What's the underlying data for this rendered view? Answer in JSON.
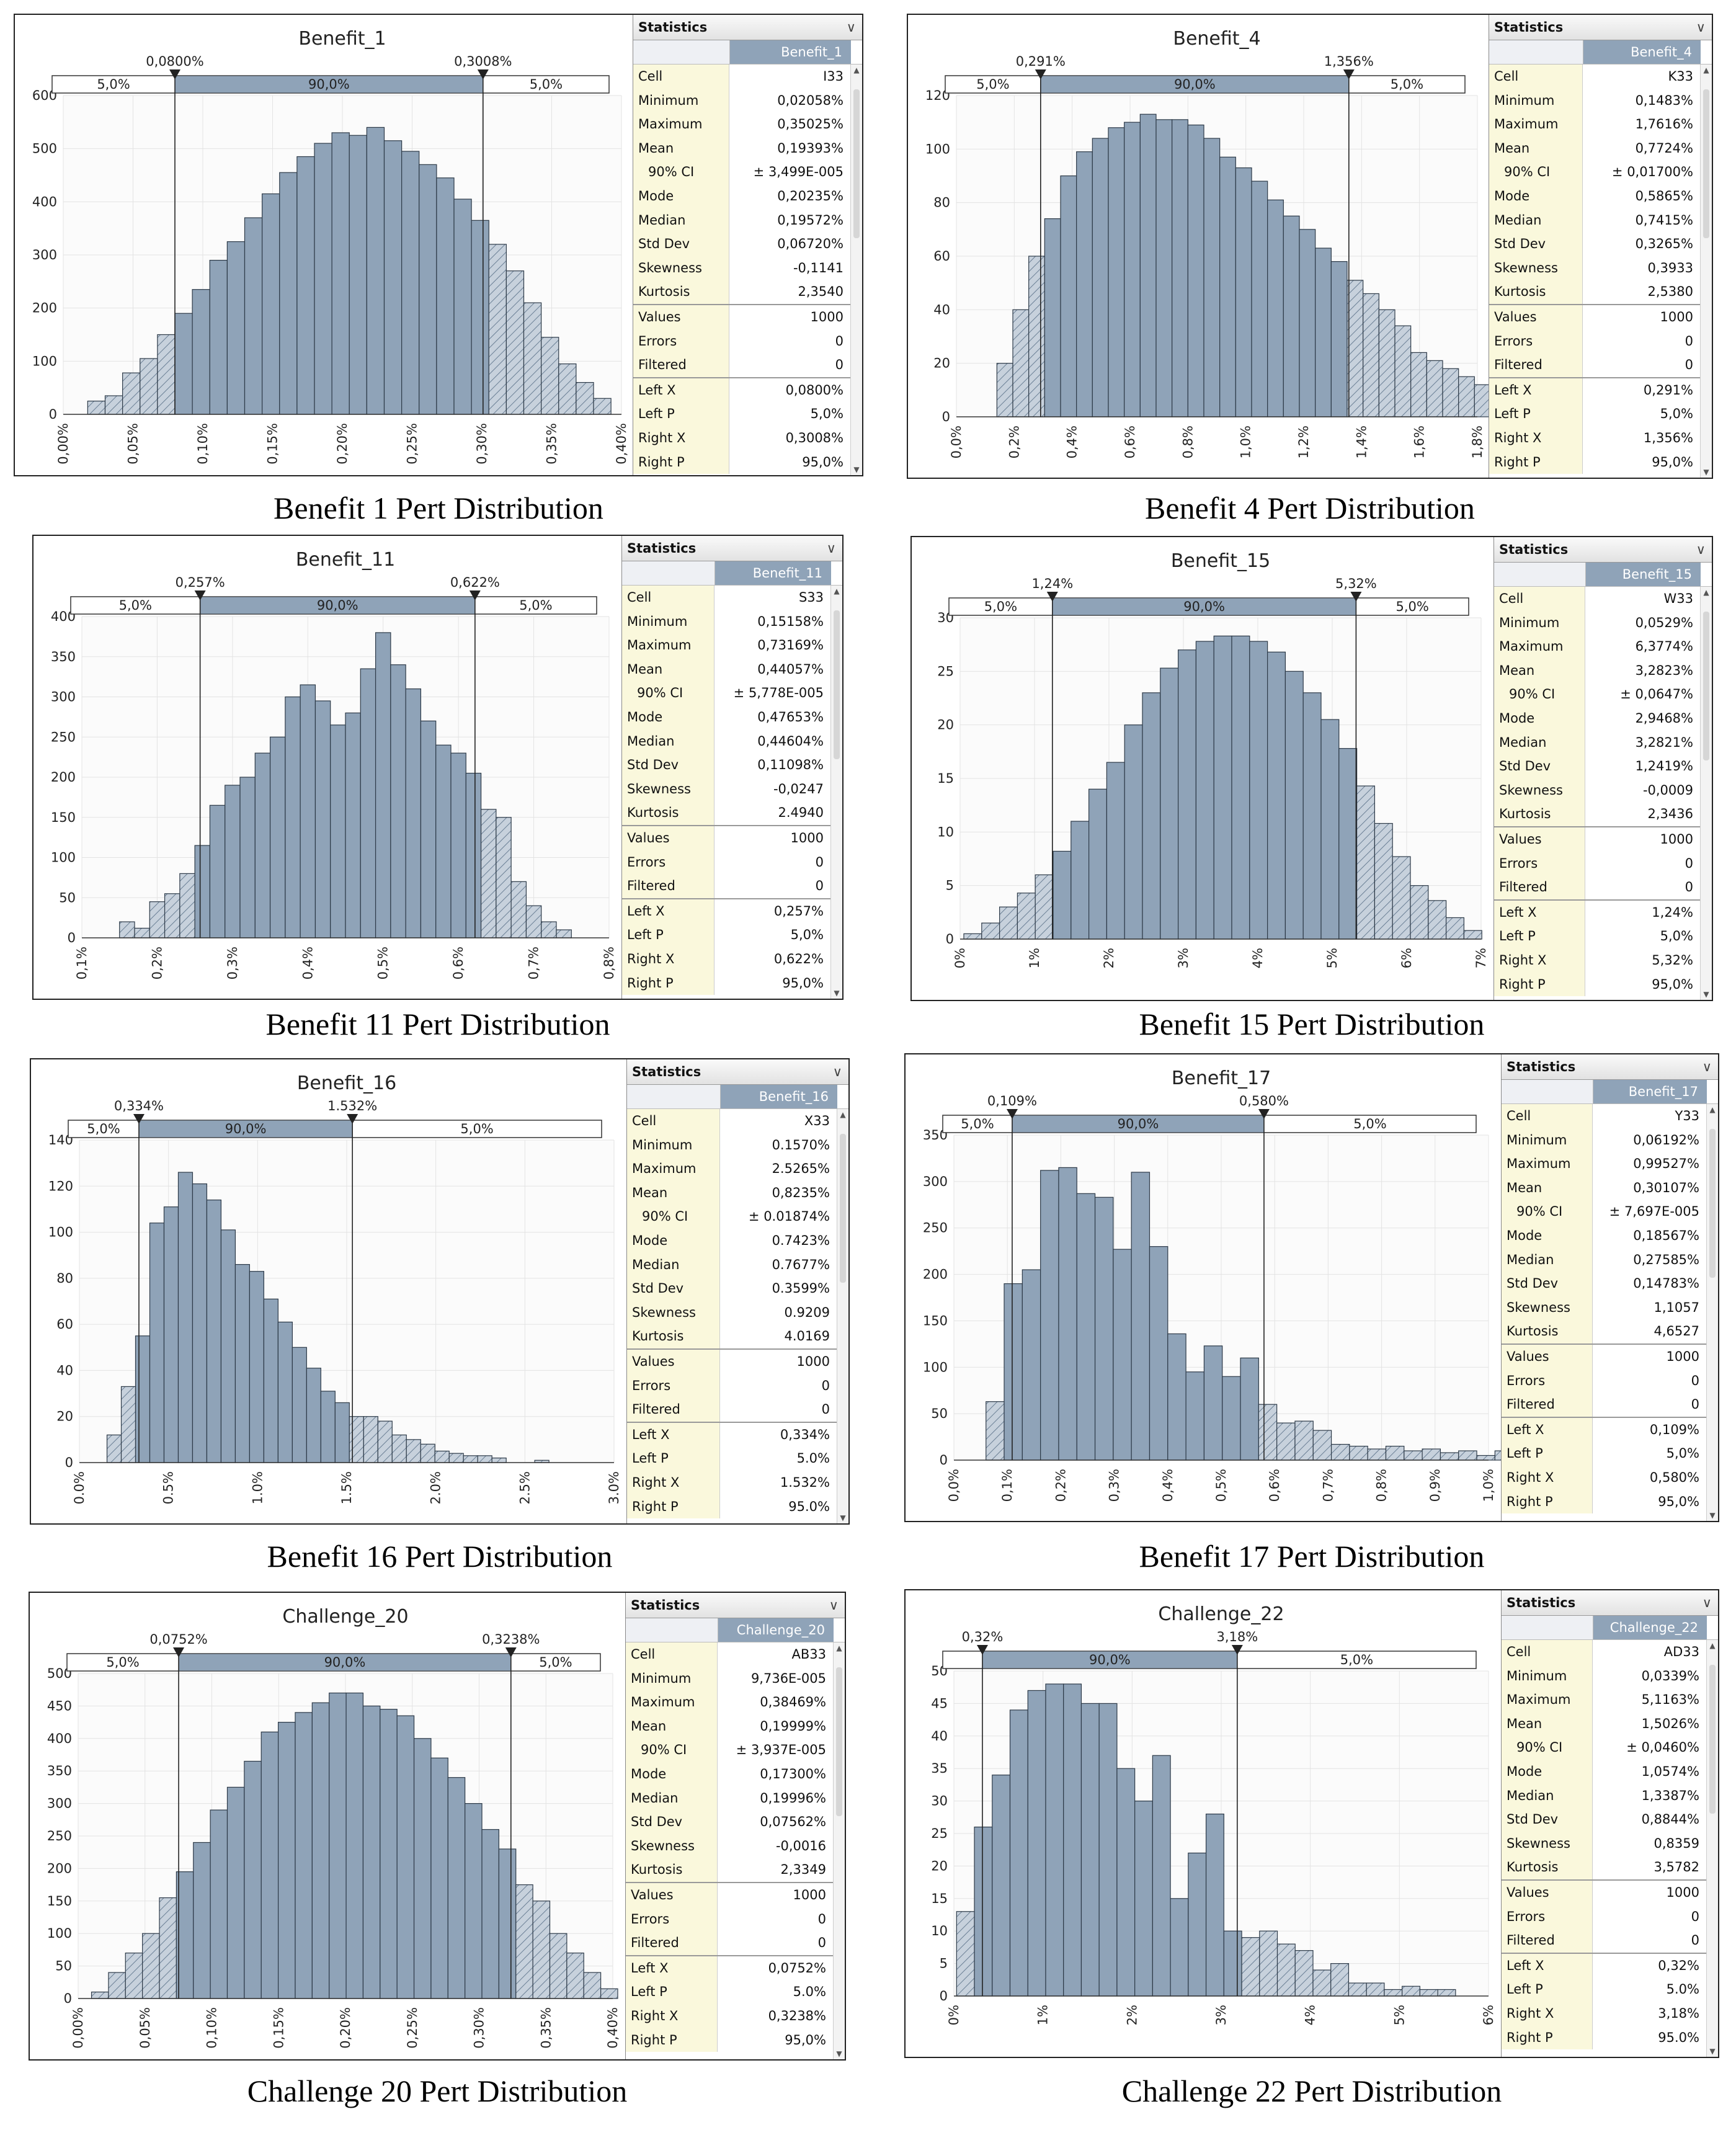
{
  "stat_header": "Statistics",
  "stat_keys": [
    "Cell",
    "Minimum",
    "Maximum",
    "Mean",
    "90% CI",
    "Mode",
    "Median",
    "Std Dev",
    "Skewness",
    "Kurtosis",
    "Values",
    "Errors",
    "Filtered",
    "Left X",
    "Left P",
    "Right X",
    "Right P"
  ],
  "panels": [
    {
      "caption": "Benefit 1 Pert Distribution",
      "title": "Benefit_1",
      "column_label": "Benefit_1",
      "stats": [
        "I33",
        "0,02058%",
        "0,35025%",
        "0,19393%",
        "± 3,499E-005",
        "0,20235%",
        "0,19572%",
        "0,06720%",
        "-0,1141",
        "2,3540",
        "1000",
        "0",
        "0",
        "0,0800%",
        "5,0%",
        "0,3008%",
        "95,0%"
      ],
      "chart_data": {
        "type": "bar",
        "title": "Benefit_1",
        "x_ticks": [
          "0,00%",
          "0,05%",
          "0,10%",
          "0,15%",
          "0,20%",
          "0,25%",
          "0,30%",
          "0,35%",
          "0,40%"
        ],
        "x_range": [
          0,
          0.4
        ],
        "y_range": [
          0,
          600
        ],
        "y_ticks": [
          0,
          100,
          200,
          300,
          400,
          500,
          600
        ],
        "bin_start": 0.0175,
        "bin_width": 0.0125,
        "values": [
          25,
          35,
          78,
          105,
          150,
          190,
          235,
          290,
          325,
          370,
          415,
          455,
          485,
          510,
          530,
          525,
          540,
          515,
          495,
          470,
          445,
          405,
          365,
          320,
          270,
          210,
          145,
          95,
          60,
          30
        ],
        "left_marker": {
          "x": 0.08,
          "label": "0,0800%"
        },
        "right_marker": {
          "x": 0.3008,
          "label": "0,3008%"
        },
        "band_labels": [
          "5,0%",
          "90,0%",
          "5,0%"
        ]
      }
    },
    {
      "caption": "Benefit 4 Pert Distribution",
      "title": "Benefit_4",
      "column_label": "Benefit_4",
      "stats": [
        "K33",
        "0,1483%",
        "1,7616%",
        "0,7724%",
        "± 0,01700%",
        "0,5865%",
        "0,7415%",
        "0,3265%",
        "0,3933",
        "2,5380",
        "1000",
        "0",
        "0",
        "0,291%",
        "5,0%",
        "1,356%",
        "95,0%"
      ],
      "chart_data": {
        "type": "bar",
        "title": "Benefit_4",
        "x_ticks": [
          "0,0%",
          "0,2%",
          "0,4%",
          "0,6%",
          "0,8%",
          "1,0%",
          "1,2%",
          "1,4%",
          "1,6%",
          "1,8%"
        ],
        "x_range": [
          0,
          1.8
        ],
        "y_range": [
          0,
          120
        ],
        "y_ticks": [
          0,
          20,
          40,
          60,
          80,
          100,
          120
        ],
        "bin_start": 0.14,
        "bin_width": 0.055,
        "values": [
          20,
          40,
          60,
          74,
          90,
          99,
          104,
          108,
          110,
          113,
          111,
          111,
          109,
          104,
          97,
          93,
          88,
          81,
          75,
          70,
          63,
          58,
          51,
          46,
          40,
          34,
          24,
          21,
          18,
          15,
          12,
          10,
          9,
          7,
          4
        ],
        "left_marker": {
          "x": 0.291,
          "label": "0,291%"
        },
        "right_marker": {
          "x": 1.356,
          "label": "1,356%"
        },
        "band_labels": [
          "5,0%",
          "90,0%",
          "5,0%"
        ]
      }
    },
    {
      "caption": "Benefit 11 Pert Distribution",
      "title": "Benefit_11",
      "column_label": "Benefit_11",
      "stats": [
        "S33",
        "0,15158%",
        "0,73169%",
        "0,44057%",
        "± 5,778E-005",
        "0,47653%",
        "0,44604%",
        "0,11098%",
        "-0,0247",
        "2.4940",
        "1000",
        "0",
        "0",
        "0,257%",
        "5,0%",
        "0,622%",
        "95,0%"
      ],
      "chart_data": {
        "type": "bar",
        "title": "Benefit_11",
        "x_ticks": [
          "0,1%",
          "0,2%",
          "0,3%",
          "0,4%",
          "0,5%",
          "0,6%",
          "0,7%",
          "0,8%"
        ],
        "x_range": [
          0.1,
          0.8
        ],
        "y_range": [
          0,
          400
        ],
        "y_ticks": [
          0,
          50,
          100,
          150,
          200,
          250,
          300,
          350,
          400
        ],
        "bin_start": 0.15,
        "bin_width": 0.02,
        "values": [
          20,
          12,
          45,
          55,
          80,
          115,
          165,
          190,
          200,
          230,
          250,
          300,
          315,
          295,
          265,
          280,
          335,
          380,
          340,
          310,
          270,
          240,
          230,
          205,
          160,
          150,
          70,
          40,
          20,
          10,
          0
        ],
        "left_marker": {
          "x": 0.257,
          "label": "0,257%"
        },
        "right_marker": {
          "x": 0.622,
          "label": "0,622%"
        },
        "band_labels": [
          "5,0%",
          "90,0%",
          "5,0%"
        ]
      }
    },
    {
      "caption": "Benefit 15 Pert Distribution",
      "title": "Benefit_15",
      "column_label": "Benefit_15",
      "stats": [
        "W33",
        "0,0529%",
        "6,3774%",
        "3,2823%",
        "± 0,0647%",
        "2,9468%",
        "3,2821%",
        "1,2419%",
        "-0,0009",
        "2,3436",
        "1000",
        "0",
        "0",
        "1,24%",
        "5,0%",
        "5,32%",
        "95,0%"
      ],
      "chart_data": {
        "type": "bar",
        "title": "Benefit_15",
        "x_ticks": [
          "0%",
          "1%",
          "2%",
          "3%",
          "4%",
          "5%",
          "6%",
          "7%"
        ],
        "x_range": [
          0,
          7
        ],
        "y_range": [
          0,
          30
        ],
        "y_ticks": [
          0,
          5,
          10,
          15,
          20,
          25,
          30
        ],
        "bin_start": 0.05,
        "bin_width": 0.24,
        "values": [
          0.5,
          1.5,
          3,
          4.3,
          6,
          8.2,
          11,
          14,
          16.5,
          20,
          23,
          25.3,
          27,
          27.8,
          28.3,
          28.3,
          27.8,
          26.8,
          25,
          23,
          20.5,
          17.8,
          14.3,
          10.8,
          7.7,
          5,
          3.6,
          2,
          0.8
        ],
        "left_marker": {
          "x": 1.24,
          "label": "1,24%"
        },
        "right_marker": {
          "x": 5.32,
          "label": "5,32%"
        },
        "band_labels": [
          "5,0%",
          "90,0%",
          "5,0%"
        ]
      }
    },
    {
      "caption": "Benefit 16 Pert Distribution",
      "title": "Benefit_16",
      "column_label": "Benefit_16",
      "stats": [
        "X33",
        "0.1570%",
        "2.5265%",
        "0,8235%",
        "± 0.01874%",
        "0.7423%",
        "0.7677%",
        "0.3599%",
        "0.9209",
        "4.0169",
        "1000",
        "0",
        "0",
        "0,334%",
        "5.0%",
        "1.532%",
        "95.0%"
      ],
      "chart_data": {
        "type": "bar",
        "title": "Benefit_16",
        "x_ticks": [
          "0.0%",
          "0.5%",
          "1.0%",
          "1.5%",
          "2.0%",
          "2.5%",
          "3.0%"
        ],
        "x_range": [
          0,
          3.0
        ],
        "y_range": [
          0,
          140
        ],
        "y_ticks": [
          0,
          20,
          40,
          60,
          80,
          100,
          120,
          140
        ],
        "bin_start": 0.155,
        "bin_width": 0.08,
        "values": [
          12,
          33,
          55,
          104,
          111,
          126,
          121,
          114,
          101,
          86,
          83,
          71,
          61,
          50,
          41,
          31,
          26,
          20,
          20,
          18,
          12,
          10,
          8,
          5,
          4,
          3,
          3,
          2,
          0,
          0,
          1
        ],
        "left_marker": {
          "x": 0.334,
          "label": "0,334%"
        },
        "right_marker": {
          "x": 1.532,
          "label": "1.532%"
        },
        "band_labels": [
          "5,0%",
          "90,0%",
          "5,0%"
        ]
      }
    },
    {
      "caption": "Benefit 17 Pert Distribution",
      "title": "Benefit_17",
      "column_label": "Benefit_17",
      "stats": [
        "Y33",
        "0,06192%",
        "0,99527%",
        "0,30107%",
        "± 7,697E-005",
        "0,18567%",
        "0,27585%",
        "0,14783%",
        "1,1057",
        "4,6527",
        "1000",
        "0",
        "0",
        "0,109%",
        "5,0%",
        "0,580%",
        "95,0%"
      ],
      "chart_data": {
        "type": "bar",
        "title": "Benefit_17",
        "x_ticks": [
          "0,0%",
          "0,1%",
          "0,2%",
          "0,3%",
          "0,4%",
          "0,5%",
          "0,6%",
          "0,7%",
          "0,8%",
          "0,9%",
          "1,0%"
        ],
        "x_range": [
          0,
          1.0
        ],
        "y_range": [
          0,
          350
        ],
        "y_ticks": [
          0,
          50,
          100,
          150,
          200,
          250,
          300,
          350
        ],
        "bin_start": 0.06,
        "bin_width": 0.034,
        "values": [
          63,
          190,
          205,
          312,
          315,
          287,
          283,
          227,
          310,
          230,
          136,
          95,
          123,
          90,
          110,
          60,
          40,
          42,
          32,
          17,
          15,
          12,
          15,
          10,
          12,
          8,
          10,
          5,
          10,
          5,
          3,
          5
        ],
        "left_marker": {
          "x": 0.109,
          "label": "0,109%"
        },
        "right_marker": {
          "x": 0.58,
          "label": "0,580%"
        },
        "band_labels": [
          "5,0%",
          "90,0%",
          "5,0%"
        ]
      }
    },
    {
      "caption": "Challenge 20 Pert Distribution",
      "title": "Challenge_20",
      "column_label": "Challenge_20",
      "stats": [
        "AB33",
        "9,736E-005",
        "0,38469%",
        "0,19999%",
        "± 3,937E-005",
        "0,17300%",
        "0,19996%",
        "0,07562%",
        "-0,0016",
        "2,3349",
        "1000",
        "0",
        "0",
        "0,0752%",
        "5.0%",
        "0,3238%",
        "95,0%"
      ],
      "chart_data": {
        "type": "bar",
        "title": "Challenge_20",
        "x_ticks": [
          "0,00%",
          "0,05%",
          "0,10%",
          "0,15%",
          "0,20%",
          "0,25%",
          "0,30%",
          "0,35%",
          "0,40%"
        ],
        "x_range": [
          0,
          0.4
        ],
        "y_range": [
          0,
          500
        ],
        "y_ticks": [
          0,
          50,
          100,
          150,
          200,
          250,
          300,
          350,
          400,
          450,
          500
        ],
        "bin_start": 0.01,
        "bin_width": 0.0127,
        "values": [
          10,
          40,
          70,
          100,
          155,
          195,
          240,
          290,
          325,
          365,
          410,
          425,
          440,
          455,
          470,
          470,
          450,
          445,
          435,
          400,
          370,
          340,
          300,
          260,
          230,
          175,
          150,
          100,
          70,
          40,
          15
        ],
        "left_marker": {
          "x": 0.0752,
          "label": "0,0752%"
        },
        "right_marker": {
          "x": 0.3238,
          "label": "0,3238%"
        },
        "band_labels": [
          "5,0%",
          "90,0%",
          "5,0%"
        ]
      }
    },
    {
      "caption": "Challenge 22 Pert Distribution",
      "title": "Challenge_22",
      "column_label": "Challenge_22",
      "stats": [
        "AD33",
        "0,0339%",
        "5,1163%",
        "1,5026%",
        "± 0,0460%",
        "1,0574%",
        "1,3387%",
        "0,8844%",
        "0,8359",
        "3,5782",
        "1000",
        "0",
        "0",
        "0,32%",
        "5.0%",
        "3,18%",
        "95.0%"
      ],
      "chart_data": {
        "type": "bar",
        "title": "Challenge_22",
        "x_ticks": [
          "0%",
          "1%",
          "2%",
          "3%",
          "4%",
          "5%",
          "6%"
        ],
        "x_range": [
          0,
          6
        ],
        "y_range": [
          0,
          50
        ],
        "y_ticks": [
          0,
          5,
          10,
          15,
          20,
          25,
          30,
          35,
          40,
          45,
          50
        ],
        "bin_start": 0.03,
        "bin_width": 0.2,
        "values": [
          13,
          26,
          34,
          44,
          47,
          48,
          48,
          45,
          45,
          35,
          30,
          37,
          15,
          22,
          28,
          10,
          9,
          10,
          8,
          7,
          4,
          5,
          2,
          2,
          1,
          1.5,
          1,
          1
        ],
        "left_marker": {
          "x": 0.32,
          "label": "0,32%"
        },
        "right_marker": {
          "x": 3.18,
          "label": "3,18%"
        },
        "band_labels": [
          "",
          "90,0%",
          "5,0%"
        ]
      }
    }
  ]
}
